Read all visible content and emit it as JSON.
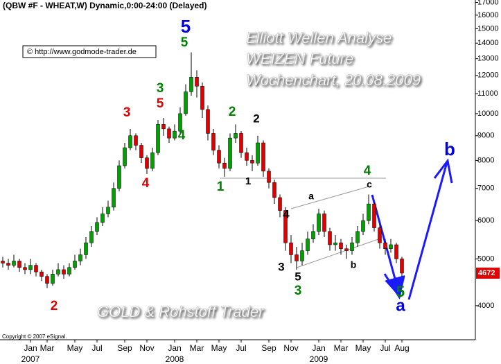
{
  "chart_data": {
    "type": "candlestick",
    "title": "(QBW #F - WHEAT,W) Dynamic,0:00-24:00 (Delayed)",
    "source": "© http://www.godmode-trader.de",
    "overlay_title": [
      "Elliott Wellen Analyse",
      "WEIZEN Future",
      "Wochenchart, 20.08.2009"
    ],
    "watermark": "GOLD & Rohstoff Trader",
    "copyright": "Copyright © 2007 eSignal.",
    "categories": [
      null,
      null,
      null,
      null,
      null,
      "Jan",
      null,
      null,
      "Mar",
      null,
      null,
      null,
      null,
      "May",
      null,
      null,
      null,
      "Jul",
      null,
      null,
      null,
      null,
      "Sep",
      null,
      null,
      null,
      "Nov",
      null,
      null,
      null,
      null,
      "Jan",
      null,
      null,
      null,
      "Mar",
      null,
      null,
      null,
      "May",
      null,
      null,
      null,
      "Jul",
      null,
      null,
      null,
      null,
      "Sep",
      null,
      null,
      null,
      "Nov",
      null,
      null,
      null,
      null,
      "Jan",
      null,
      null,
      null,
      "Mar",
      null,
      null,
      null,
      "May",
      null,
      null,
      null,
      "Jul",
      null,
      null,
      "Aug"
    ],
    "year_labels": [
      "2007",
      "2008",
      "2009"
    ],
    "open": [
      4950,
      4900,
      4850,
      4950,
      4800,
      4750,
      4850,
      4700,
      4600,
      4450,
      4650,
      4750,
      4650,
      4800,
      4950,
      5100,
      5400,
      5700,
      5950,
      6200,
      6400,
      7000,
      7800,
      8500,
      9000,
      8600,
      8100,
      7700,
      8300,
      9500,
      9300,
      8900,
      9200,
      10000,
      11100,
      11900,
      11400,
      10200,
      9100,
      8400,
      7900,
      7700,
      8900,
      9100,
      8300,
      8000,
      7900,
      8700,
      7600,
      7200,
      6700,
      6300,
      5400,
      5100,
      4950,
      5200,
      5500,
      5700,
      6200,
      5700,
      5350,
      5400,
      5250,
      5200,
      5400,
      5700,
      6000,
      6500,
      5800,
      5400,
      5250,
      5350,
      5000
    ],
    "high": [
      5050,
      5000,
      5100,
      5000,
      4900,
      5000,
      4900,
      4750,
      4650,
      4750,
      4900,
      4850,
      4900,
      5100,
      5250,
      5550,
      5850,
      6100,
      6400,
      6600,
      7200,
      8000,
      8700,
      9300,
      9100,
      8700,
      8200,
      8500,
      9700,
      9800,
      9400,
      9500,
      10300,
      11500,
      13400,
      12300,
      11600,
      10400,
      9300,
      8600,
      8100,
      9100,
      9500,
      9200,
      8500,
      8200,
      9000,
      8800,
      7700,
      7300,
      6800,
      6400,
      5600,
      5300,
      5400,
      5700,
      5900,
      6350,
      6300,
      5800,
      5600,
      5500,
      5350,
      5550,
      5850,
      6200,
      6800,
      6550,
      5900,
      5500,
      5500,
      5400,
      5050
    ],
    "low": [
      4800,
      4750,
      4800,
      4700,
      4650,
      4650,
      4600,
      4500,
      4350,
      4400,
      4600,
      4550,
      4600,
      4750,
      4850,
      5000,
      5300,
      5600,
      5850,
      6100,
      6300,
      6900,
      7700,
      8400,
      8400,
      7900,
      7500,
      7600,
      8200,
      9000,
      8700,
      8800,
      9100,
      9900,
      10900,
      10800,
      9800,
      8800,
      8200,
      7700,
      7400,
      7600,
      8700,
      8100,
      7800,
      7600,
      7800,
      7400,
      7000,
      6500,
      6100,
      5200,
      4900,
      4750,
      4850,
      5100,
      5400,
      5600,
      5550,
      5200,
      5200,
      5100,
      5000,
      5100,
      5300,
      5600,
      5900,
      5700,
      5250,
      5100,
      5150,
      4900,
      4600
    ],
    "close": [
      4900,
      4850,
      4950,
      4800,
      4750,
      4850,
      4700,
      4600,
      4450,
      4650,
      4750,
      4650,
      4800,
      4950,
      5100,
      5400,
      5700,
      5950,
      6200,
      6400,
      7000,
      7800,
      8500,
      9000,
      8600,
      8100,
      7700,
      8300,
      9500,
      9300,
      8900,
      9200,
      10000,
      11100,
      11900,
      11400,
      10200,
      9100,
      8400,
      7900,
      7700,
      8900,
      9100,
      8300,
      8000,
      7900,
      8700,
      7600,
      7200,
      6700,
      6300,
      5400,
      5100,
      4950,
      5200,
      5500,
      5700,
      6200,
      5700,
      5350,
      5400,
      5250,
      5200,
      5400,
      5700,
      6000,
      6500,
      5800,
      5400,
      5250,
      5350,
      5000,
      4672
    ],
    "up_color": "#00a000",
    "down_color": "#e00000",
    "last_color": "#e00000",
    "log_scale": true,
    "ylim": [
      3400,
      17200
    ],
    "yticks": [
      4000,
      5000,
      6000,
      7000,
      8000,
      9000,
      10000,
      11000,
      12000,
      13000,
      14000,
      15000,
      16000,
      17000
    ],
    "annotations": [
      {
        "text": "2",
        "color": "#e00000"
      },
      {
        "text": "3",
        "color": "#e00000"
      },
      {
        "text": "4",
        "color": "#e00000"
      },
      {
        "text": "5",
        "color": "#e00000"
      },
      {
        "text": "3",
        "color": "#008000"
      },
      {
        "text": "4",
        "color": "#008000"
      },
      {
        "text": "5",
        "color": "#0000e0"
      },
      {
        "text": "5",
        "color": "#008000"
      },
      {
        "text": "1",
        "color": "#008000"
      },
      {
        "text": "2",
        "color": "#008000"
      },
      {
        "text": "1",
        "color": "#000000"
      },
      {
        "text": "2",
        "color": "#000000"
      },
      {
        "text": "4",
        "color": "#000000"
      },
      {
        "text": "3",
        "color": "#000000"
      },
      {
        "text": "5",
        "color": "#000000"
      },
      {
        "text": "3",
        "color": "#008000"
      },
      {
        "text": "a",
        "color": "#000000"
      },
      {
        "text": "b",
        "color": "#000000"
      },
      {
        "text": "4",
        "color": "#008000"
      },
      {
        "text": "c",
        "color": "#000000"
      },
      {
        "text": "5",
        "color": "#008000"
      },
      {
        "text": "a",
        "color": "#0000e0"
      },
      {
        "text": "b",
        "color": "#0000e0"
      }
    ]
  }
}
